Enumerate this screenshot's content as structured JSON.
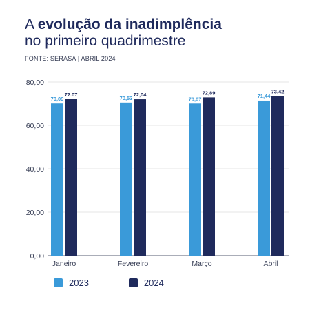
{
  "header": {
    "title_prefix": "A ",
    "title_bold": "evolução da inadimplência",
    "subtitle": "no primeiro quadrimestre",
    "source": "FONTE: SERASA | ABRIL 2024"
  },
  "colors": {
    "series_2023": "#3a9ad9",
    "series_2024": "#1f2a5c",
    "axis": "#333a52",
    "grid": "#e6e6e6"
  },
  "chart_data": {
    "type": "bar",
    "categories": [
      "Janeiro",
      "Fevereiro",
      "Março",
      "Abril"
    ],
    "series": [
      {
        "name": "2023",
        "values": [
          70.09,
          70.53,
          70.07,
          71.44
        ],
        "labels": [
          "70,09",
          "70,53",
          "70,07",
          "71,44"
        ]
      },
      {
        "name": "2024",
        "values": [
          72.07,
          72.04,
          72.89,
          73.42
        ],
        "labels": [
          "72.07",
          "72,04",
          "72,89",
          "73,42"
        ]
      }
    ],
    "ylim": [
      0,
      80
    ],
    "yticks": [
      0,
      20,
      40,
      60,
      80
    ],
    "ytick_labels": [
      "0,00",
      "20,00",
      "40,00",
      "60,00",
      "80,00"
    ],
    "grid": true,
    "legend_position": "bottom-left"
  }
}
